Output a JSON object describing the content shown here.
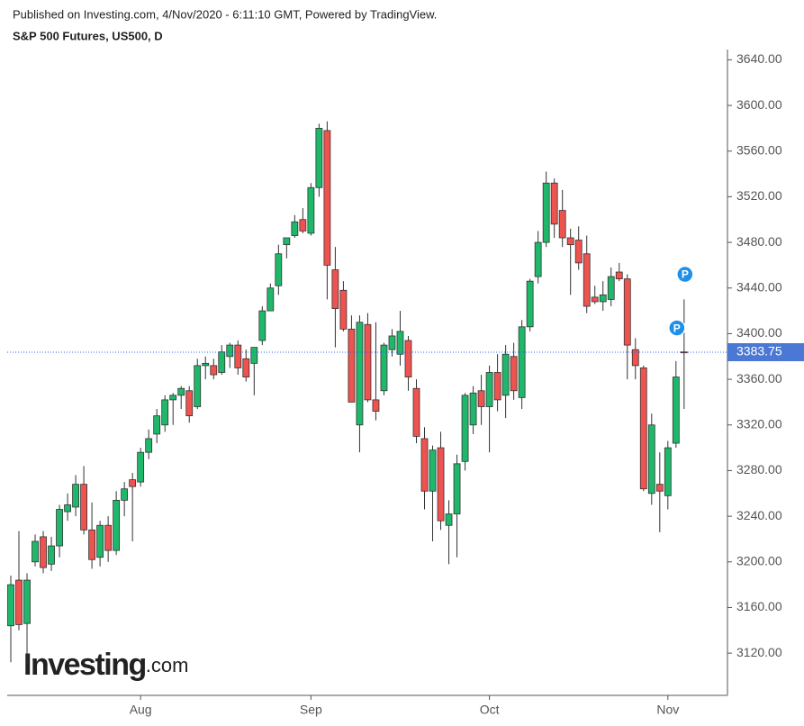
{
  "header": {
    "published": "Published on Investing.com, 4/Nov/2020 - 6:11:10 GMT, Powered by TradingView.",
    "symbol": "S&P 500 Futures, US500, D"
  },
  "logo": {
    "name": "Investing",
    "suffix": ".com"
  },
  "chart_data": {
    "type": "candlestick",
    "categories": [
      null,
      null,
      null,
      null,
      null,
      null,
      null,
      null,
      null,
      null,
      null,
      null,
      null,
      null,
      null,
      null,
      "Aug",
      null,
      null,
      null,
      null,
      null,
      null,
      null,
      null,
      null,
      null,
      null,
      null,
      null,
      null,
      null,
      null,
      null,
      null,
      null,
      null,
      "Sep",
      null,
      null,
      null,
      null,
      null,
      null,
      null,
      null,
      null,
      null,
      null,
      null,
      null,
      null,
      null,
      null,
      null,
      null,
      null,
      null,
      null,
      "Oct",
      null,
      null,
      null,
      null,
      null,
      null,
      null,
      null,
      null,
      null,
      null,
      null,
      null,
      null,
      null,
      null,
      null,
      null,
      null,
      null,
      null,
      "Nov",
      null,
      null
    ],
    "open": [
      3144,
      3184,
      3146,
      3200,
      3222,
      3198,
      3214,
      3244,
      3248,
      3268,
      3228,
      3204,
      3232,
      3210,
      3254,
      3272,
      3270,
      3296,
      3312,
      3320,
      3342,
      3346,
      3350,
      3336,
      3372,
      3372,
      3366,
      3380,
      3390,
      3378,
      3374,
      3394,
      3420,
      3442,
      3478,
      3486,
      3500,
      3488,
      3528,
      3578,
      3456,
      3438,
      3404,
      3320,
      3408,
      3342,
      3350,
      3386,
      3382,
      3394,
      3352,
      3308,
      3262,
      3300,
      3232,
      3242,
      3288,
      3320,
      3350,
      3336,
      3366,
      3346,
      3380,
      3344,
      3406,
      3450,
      3480,
      3532,
      3508,
      3484,
      3482,
      3470,
      3432,
      3428,
      3430,
      3454,
      3448,
      3386,
      3370,
      3260,
      3268,
      3258,
      3304,
      3384
    ],
    "high": [
      3188,
      3227,
      3190,
      3224,
      3227,
      3222,
      3250,
      3260,
      3276,
      3284,
      3252,
      3236,
      3240,
      3262,
      3270,
      3278,
      3300,
      3316,
      3334,
      3346,
      3348,
      3354,
      3354,
      3378,
      3380,
      3378,
      3390,
      3392,
      3394,
      3386,
      3388,
      3424,
      3444,
      3478,
      3484,
      3504,
      3510,
      3532,
      3584,
      3586,
      3476,
      3446,
      3416,
      3416,
      3418,
      3410,
      3392,
      3404,
      3420,
      3398,
      3360,
      3318,
      3302,
      3314,
      3254,
      3294,
      3348,
      3354,
      3364,
      3372,
      3382,
      3390,
      3392,
      3412,
      3448,
      3490,
      3542,
      3536,
      3526,
      3492,
      3494,
      3486,
      3442,
      3446,
      3458,
      3462,
      3452,
      3396,
      3372,
      3330,
      3296,
      3306,
      3376,
      3430
    ],
    "low": [
      3112,
      3140,
      3110,
      3196,
      3190,
      3192,
      3204,
      3236,
      3240,
      3224,
      3194,
      3196,
      3200,
      3206,
      3240,
      3218,
      3266,
      3290,
      3304,
      3314,
      3320,
      3334,
      3322,
      3334,
      3360,
      3360,
      3364,
      3370,
      3364,
      3358,
      3346,
      3390,
      3420,
      3434,
      3466,
      3484,
      3488,
      3486,
      3520,
      3430,
      3388,
      3402,
      3340,
      3296,
      3340,
      3324,
      3346,
      3380,
      3372,
      3350,
      3304,
      3246,
      3218,
      3228,
      3198,
      3204,
      3280,
      3312,
      3320,
      3296,
      3332,
      3326,
      3342,
      3334,
      3402,
      3444,
      3476,
      3484,
      3476,
      3434,
      3456,
      3418,
      3426,
      3420,
      3424,
      3446,
      3360,
      3360,
      3262,
      3250,
      3226,
      3246,
      3300,
      3334
    ],
    "close": [
      3180,
      3145,
      3184,
      3218,
      3195,
      3214,
      3246,
      3250,
      3268,
      3228,
      3202,
      3232,
      3210,
      3254,
      3264,
      3266,
      3296,
      3308,
      3328,
      3342,
      3346,
      3352,
      3328,
      3372,
      3374,
      3364,
      3384,
      3390,
      3370,
      3362,
      3388,
      3420,
      3440,
      3470,
      3484,
      3498,
      3490,
      3528,
      3580,
      3460,
      3422,
      3404,
      3340,
      3410,
      3342,
      3332,
      3390,
      3398,
      3402,
      3362,
      3310,
      3262,
      3298,
      3236,
      3242,
      3286,
      3346,
      3348,
      3336,
      3366,
      3342,
      3382,
      3350,
      3406,
      3446,
      3480,
      3532,
      3496,
      3484,
      3478,
      3462,
      3424,
      3428,
      3434,
      3450,
      3448,
      3390,
      3372,
      3264,
      3320,
      3262,
      3300,
      3362,
      3383.75
    ],
    "up_color": "#1fb86b",
    "down_color": "#ef5350",
    "last_price": {
      "value": 3383.75,
      "label": "3383.75"
    },
    "markers": [
      {
        "text": "P",
        "value": 3452
      },
      {
        "text": "P",
        "value": 3405
      }
    ],
    "ylim": [
      3083,
      3649
    ],
    "yticks": [
      {
        "value": 3120,
        "label": "3120.00"
      },
      {
        "value": 3160,
        "label": "3160.00"
      },
      {
        "value": 3200,
        "label": "3200.00"
      },
      {
        "value": 3240,
        "label": "3240.00"
      },
      {
        "value": 3280,
        "label": "3280.00"
      },
      {
        "value": 3320,
        "label": "3320.00"
      },
      {
        "value": 3360,
        "label": "3360.00"
      },
      {
        "value": 3400,
        "label": "3400.00"
      },
      {
        "value": 3440,
        "label": "3440.00"
      },
      {
        "value": 3480,
        "label": "3480.00"
      },
      {
        "value": 3520,
        "label": "3520.00"
      },
      {
        "value": 3560,
        "label": "3560.00"
      },
      {
        "value": 3600,
        "label": "3600.00"
      },
      {
        "value": 3640,
        "label": "3640.00"
      }
    ]
  }
}
